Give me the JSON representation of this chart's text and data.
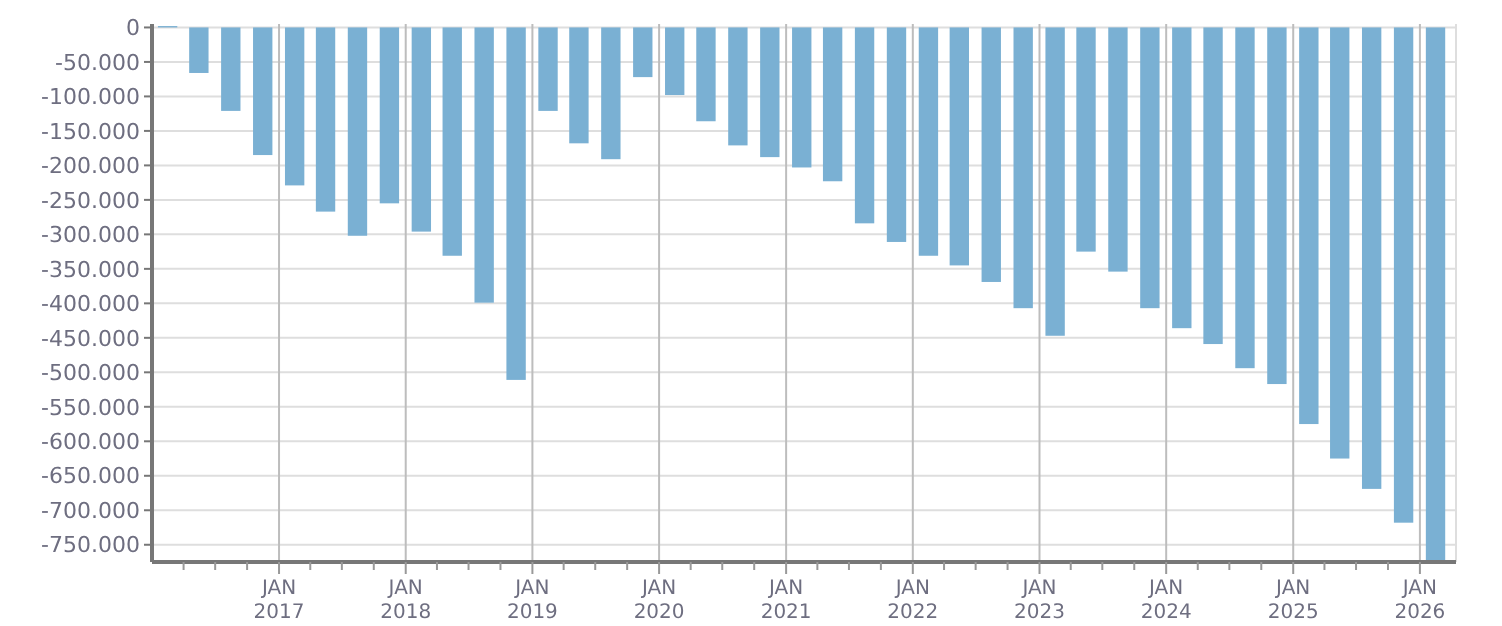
{
  "chart_data": {
    "type": "bar",
    "x": [
      "2016-02-15",
      "2016-05-15",
      "2016-08-15",
      "2016-11-15",
      "2017-02-15",
      "2017-05-15",
      "2017-08-15",
      "2017-11-15",
      "2018-02-15",
      "2018-05-15",
      "2018-08-15",
      "2018-11-15",
      "2019-02-15",
      "2019-05-15",
      "2019-08-15",
      "2019-11-15",
      "2020-02-15",
      "2020-05-15",
      "2020-08-15",
      "2020-11-15",
      "2021-02-15",
      "2021-05-15",
      "2021-08-15",
      "2021-11-15",
      "2022-02-15",
      "2022-05-15",
      "2022-08-15",
      "2022-11-15",
      "2023-02-15",
      "2023-05-15",
      "2023-08-15",
      "2023-11-15",
      "2024-02-15",
      "2024-05-15",
      "2024-08-15",
      "2024-11-15",
      "2025-02-15",
      "2025-05-15",
      "2025-08-15",
      "2025-11-15",
      "2026-02-15"
    ],
    "values": [
      2000,
      -66000,
      -121000,
      -185000,
      -229000,
      -267000,
      -302000,
      -255000,
      -296000,
      -331000,
      -399000,
      -511000,
      -121000,
      -168000,
      -191000,
      -72000,
      -98000,
      -136000,
      -171000,
      -188000,
      -203000,
      -223000,
      -284000,
      -311000,
      -331000,
      -345000,
      -369000,
      -407000,
      -447000,
      -325000,
      -354000,
      -407000,
      -436000,
      -459000,
      -494000,
      -517000,
      -575000,
      -625000,
      -669000,
      -718000,
      -775000
    ],
    "color": "#7ab0d3",
    "xlim": [
      "2016-01-01",
      "2026-04-15"
    ],
    "xticks": [
      {
        "value": "2016-04-01",
        "label": null
      },
      {
        "value": "2016-07-01",
        "label": null
      },
      {
        "value": "2016-10-01",
        "label": null
      },
      {
        "value": "2017-01-01",
        "label": "JAN 2017"
      },
      {
        "value": "2017-04-01",
        "label": null
      },
      {
        "value": "2017-07-01",
        "label": null
      },
      {
        "value": "2017-10-01",
        "label": null
      },
      {
        "value": "2018-01-01",
        "label": "JAN 2018"
      },
      {
        "value": "2018-04-01",
        "label": null
      },
      {
        "value": "2018-07-01",
        "label": null
      },
      {
        "value": "2018-10-01",
        "label": null
      },
      {
        "value": "2019-01-01",
        "label": "JAN 2019"
      },
      {
        "value": "2019-04-01",
        "label": null
      },
      {
        "value": "2019-07-01",
        "label": null
      },
      {
        "value": "2019-10-01",
        "label": null
      },
      {
        "value": "2020-01-01",
        "label": "JAN 2020"
      },
      {
        "value": "2020-04-01",
        "label": null
      },
      {
        "value": "2020-07-01",
        "label": null
      },
      {
        "value": "2020-10-01",
        "label": null
      },
      {
        "value": "2021-01-01",
        "label": "JAN 2021"
      },
      {
        "value": "2021-04-01",
        "label": null
      },
      {
        "value": "2021-07-01",
        "label": null
      },
      {
        "value": "2021-10-01",
        "label": null
      },
      {
        "value": "2022-01-01",
        "label": "JAN 2022"
      },
      {
        "value": "2022-04-01",
        "label": null
      },
      {
        "value": "2022-07-01",
        "label": null
      },
      {
        "value": "2022-10-01",
        "label": null
      },
      {
        "value": "2023-01-01",
        "label": "JAN 2023"
      },
      {
        "value": "2023-04-01",
        "label": null
      },
      {
        "value": "2023-07-01",
        "label": null
      },
      {
        "value": "2023-10-01",
        "label": null
      },
      {
        "value": "2024-01-01",
        "label": "JAN 2024"
      },
      {
        "value": "2024-04-01",
        "label": null
      },
      {
        "value": "2024-07-01",
        "label": null
      },
      {
        "value": "2024-10-01",
        "label": null
      },
      {
        "value": "2025-01-01",
        "label": "JAN 2025"
      },
      {
        "value": "2025-04-01",
        "label": null
      },
      {
        "value": "2025-07-01",
        "label": null
      },
      {
        "value": "2025-10-01",
        "label": null
      },
      {
        "value": "2026-01-01",
        "label": "JAN 2026"
      }
    ],
    "ylim": [
      -775000,
      5000
    ],
    "yticks": [
      0,
      {
        "value": -50000,
        "label": "-50.000"
      },
      {
        "value": -100000,
        "label": "-100.000"
      },
      {
        "value": -150000,
        "label": "-150.000"
      },
      {
        "value": -200000,
        "label": "-200.000"
      },
      {
        "value": -250000,
        "label": "-250.000"
      },
      {
        "value": -300000,
        "label": "-300.000"
      },
      {
        "value": -350000,
        "label": "-350.000"
      },
      {
        "value": -400000,
        "label": "-400.000"
      },
      {
        "value": -450000,
        "label": "-450.000"
      },
      {
        "value": -500000,
        "label": "-500.000"
      },
      {
        "value": -550000,
        "label": "-550.000"
      },
      {
        "value": -600000,
        "label": "-600.000"
      },
      {
        "value": -650000,
        "label": "-650.000"
      },
      {
        "value": -700000,
        "label": "-700.000"
      },
      {
        "value": -750000,
        "label": "-750.000"
      }
    ],
    "grid": true
  }
}
